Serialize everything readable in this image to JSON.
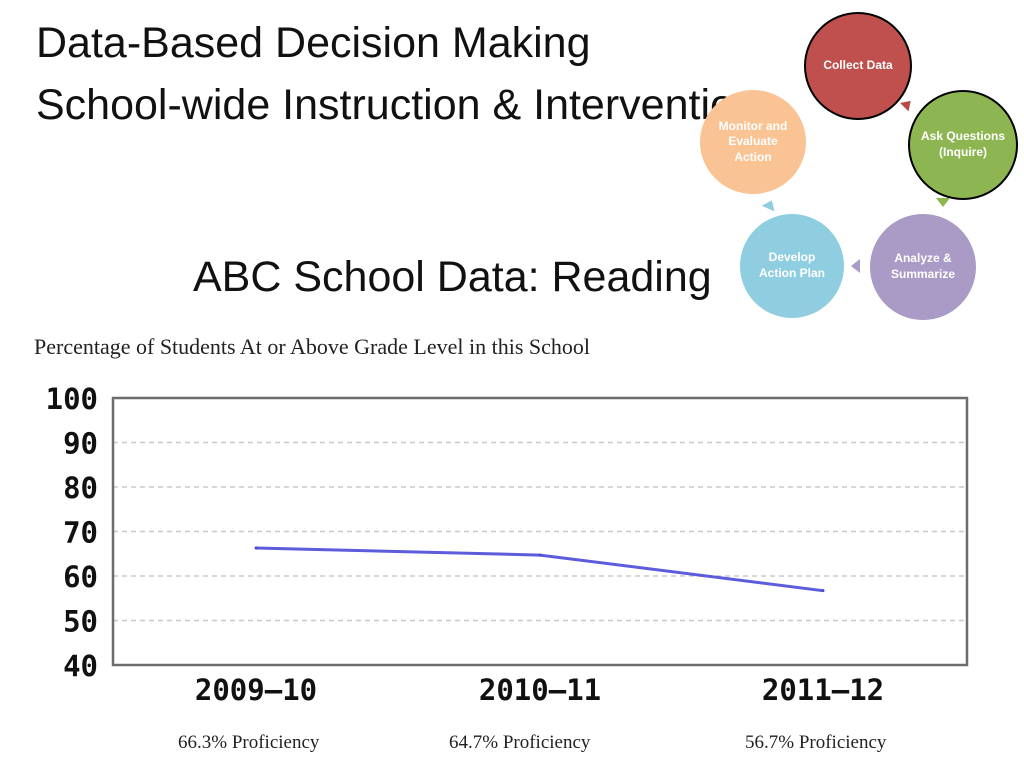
{
  "slide": {
    "title_line1": "Data-Based Decision Making",
    "title_line2": "School-wide Instruction & Intervention",
    "subtitle": "ABC School Data: Reading"
  },
  "cycle": {
    "collect": "Collect Data",
    "ask": "Ask Questions (Inquire)",
    "analyze": "Analyze & Summarize",
    "develop": "Develop Action Plan",
    "monitor": "Monitor and Evaluate Action",
    "colors": {
      "collect": "#c0504d",
      "ask": "#8db652",
      "analyze": "#a99ac6",
      "develop": "#8fcde0",
      "monitor": "#f9c394"
    }
  },
  "chart_data": {
    "type": "line",
    "title": "Percentage of Students At or Above Grade Level in this School",
    "categories": [
      "2009-10",
      "2010-11",
      "2011-12"
    ],
    "series": [
      {
        "values": [
          66.3,
          64.7,
          56.7
        ],
        "color": "#4a4ad8"
      }
    ],
    "ylim": [
      40,
      100
    ],
    "yticks": [
      100,
      90,
      80,
      70,
      60,
      50,
      40
    ],
    "grid": true,
    "annotations": [
      "66.3% Proficiency",
      "64.7% Proficiency",
      "56.7% Proficiency"
    ]
  }
}
